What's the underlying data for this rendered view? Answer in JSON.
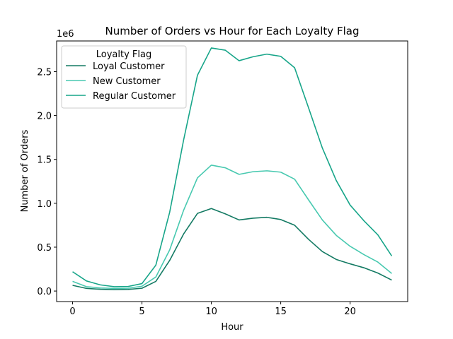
{
  "chart_data": {
    "type": "line",
    "title": "Number of Orders vs Hour for Each Loyalty Flag",
    "xlabel": "Hour",
    "ylabel": "Number of Orders",
    "y_multiplier_label": "1e6",
    "xlim": [
      -1.15,
      24.15
    ],
    "ylim": [
      -0.12,
      2.85
    ],
    "x_ticks": [
      0,
      5,
      10,
      15,
      20
    ],
    "y_ticks": [
      0.0,
      0.5,
      1.0,
      1.5,
      2.0,
      2.5
    ],
    "y_tick_labels": [
      "0.0",
      "0.5",
      "1.0",
      "1.5",
      "2.0",
      "2.5"
    ],
    "grid": false,
    "legend": {
      "title": "Loyalty Flag",
      "placement": "top-left"
    },
    "x": [
      0,
      1,
      2,
      3,
      4,
      5,
      6,
      7,
      8,
      9,
      10,
      11,
      12,
      13,
      14,
      15,
      16,
      17,
      18,
      19,
      20,
      21,
      22,
      23
    ],
    "series": [
      {
        "name": "Loyal Customer",
        "color": "#137a63",
        "values": [
          0.065,
          0.03,
          0.02,
          0.015,
          0.018,
          0.032,
          0.11,
          0.35,
          0.65,
          0.885,
          0.94,
          0.88,
          0.81,
          0.83,
          0.84,
          0.815,
          0.75,
          0.59,
          0.45,
          0.36,
          0.31,
          0.265,
          0.205,
          0.125
        ]
      },
      {
        "name": "New Customer",
        "color": "#48c9b0",
        "values": [
          0.11,
          0.05,
          0.035,
          0.03,
          0.032,
          0.055,
          0.16,
          0.47,
          0.92,
          1.29,
          1.435,
          1.405,
          1.33,
          1.36,
          1.37,
          1.355,
          1.275,
          1.04,
          0.81,
          0.635,
          0.51,
          0.415,
          0.33,
          0.2
        ]
      },
      {
        "name": "Regular Customer",
        "color": "#17a589",
        "values": [
          0.22,
          0.115,
          0.07,
          0.05,
          0.052,
          0.085,
          0.295,
          0.9,
          1.72,
          2.46,
          2.77,
          2.745,
          2.625,
          2.67,
          2.7,
          2.675,
          2.545,
          2.09,
          1.63,
          1.26,
          0.98,
          0.8,
          0.64,
          0.4
        ]
      }
    ]
  }
}
